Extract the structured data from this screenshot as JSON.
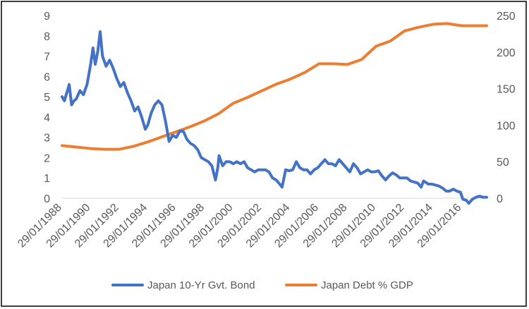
{
  "chart_data": {
    "type": "line",
    "title": "",
    "xlabel": "",
    "ylabel": "",
    "y_left": {
      "min": 0,
      "max": 9,
      "ticks": [
        "0",
        "1",
        "2",
        "3",
        "4",
        "5",
        "6",
        "7",
        "8",
        "9"
      ]
    },
    "y_right": {
      "min": 0,
      "max": 250,
      "ticks": [
        "0",
        "50",
        "100",
        "150",
        "200",
        "250"
      ]
    },
    "x_range": [
      "1988-01-29",
      "2017-10-31"
    ],
    "x_ticks": [
      "29/01/1988",
      "29/01/1990",
      "29/01/1992",
      "29/01/1994",
      "29/01/1996",
      "29/01/1998",
      "29/01/2000",
      "29/01/2002",
      "29/01/2004",
      "29/01/2006",
      "29/01/2008",
      "29/01/2010",
      "29/01/2012",
      "29/01/2014",
      "29/01/2016"
    ],
    "grid": false,
    "legend_position": "bottom",
    "series": [
      {
        "name": "Japan 10-Yr Gvt. Bond",
        "axis": "left",
        "color": "#4472C4",
        "points": [
          [
            "1988-01-29",
            5.0
          ],
          [
            "1988-03-29",
            4.8
          ],
          [
            "1988-05-29",
            5.2
          ],
          [
            "1988-07-29",
            5.6
          ],
          [
            "1988-09-29",
            4.6
          ],
          [
            "1988-11-29",
            4.8
          ],
          [
            "1989-01-29",
            4.9
          ],
          [
            "1989-04-29",
            5.3
          ],
          [
            "1989-07-29",
            5.1
          ],
          [
            "1989-10-29",
            5.6
          ],
          [
            "1990-01-29",
            6.6
          ],
          [
            "1990-03-29",
            7.4
          ],
          [
            "1990-05-29",
            6.6
          ],
          [
            "1990-07-29",
            7.2
          ],
          [
            "1990-09-29",
            8.2
          ],
          [
            "1990-11-29",
            7.0
          ],
          [
            "1991-02-28",
            6.5
          ],
          [
            "1991-05-29",
            6.8
          ],
          [
            "1991-08-29",
            6.4
          ],
          [
            "1991-11-29",
            5.9
          ],
          [
            "1992-02-29",
            5.5
          ],
          [
            "1992-05-29",
            5.7
          ],
          [
            "1992-08-29",
            5.2
          ],
          [
            "1992-11-29",
            4.8
          ],
          [
            "1993-02-28",
            4.3
          ],
          [
            "1993-05-29",
            4.5
          ],
          [
            "1993-08-29",
            4.0
          ],
          [
            "1993-11-29",
            3.4
          ],
          [
            "1994-01-29",
            3.6
          ],
          [
            "1994-04-29",
            4.2
          ],
          [
            "1994-07-29",
            4.6
          ],
          [
            "1994-10-29",
            4.8
          ],
          [
            "1995-01-29",
            4.6
          ],
          [
            "1995-04-29",
            3.8
          ],
          [
            "1995-07-29",
            2.8
          ],
          [
            "1995-10-29",
            3.1
          ],
          [
            "1996-01-29",
            3.0
          ],
          [
            "1996-04-29",
            3.3
          ],
          [
            "1996-07-29",
            3.3
          ],
          [
            "1996-10-29",
            2.9
          ],
          [
            "1997-01-29",
            2.7
          ],
          [
            "1997-04-29",
            2.6
          ],
          [
            "1997-07-29",
            2.4
          ],
          [
            "1997-10-29",
            2.0
          ],
          [
            "1998-01-29",
            1.9
          ],
          [
            "1998-04-29",
            1.8
          ],
          [
            "1998-07-29",
            1.6
          ],
          [
            "1998-10-29",
            0.9
          ],
          [
            "1998-12-29",
            1.5
          ],
          [
            "1999-01-29",
            2.1
          ],
          [
            "1999-04-29",
            1.6
          ],
          [
            "1999-07-29",
            1.8
          ],
          [
            "1999-10-29",
            1.8
          ],
          [
            "2000-01-29",
            1.7
          ],
          [
            "2000-04-29",
            1.8
          ],
          [
            "2000-07-29",
            1.7
          ],
          [
            "2000-10-29",
            1.8
          ],
          [
            "2001-01-29",
            1.5
          ],
          [
            "2001-04-29",
            1.4
          ],
          [
            "2001-07-29",
            1.3
          ],
          [
            "2001-10-29",
            1.4
          ],
          [
            "2002-01-29",
            1.4
          ],
          [
            "2002-04-29",
            1.4
          ],
          [
            "2002-07-29",
            1.3
          ],
          [
            "2002-10-29",
            1.0
          ],
          [
            "2003-01-29",
            0.9
          ],
          [
            "2003-04-29",
            0.7
          ],
          [
            "2003-06-29",
            0.55
          ],
          [
            "2003-09-29",
            1.4
          ],
          [
            "2003-12-29",
            1.35
          ],
          [
            "2004-03-29",
            1.4
          ],
          [
            "2004-06-29",
            1.8
          ],
          [
            "2004-09-29",
            1.5
          ],
          [
            "2004-12-29",
            1.4
          ],
          [
            "2005-03-29",
            1.4
          ],
          [
            "2005-06-29",
            1.2
          ],
          [
            "2005-09-29",
            1.4
          ],
          [
            "2005-12-29",
            1.5
          ],
          [
            "2006-03-29",
            1.7
          ],
          [
            "2006-06-29",
            1.9
          ],
          [
            "2006-09-29",
            1.7
          ],
          [
            "2006-12-29",
            1.7
          ],
          [
            "2007-03-29",
            1.6
          ],
          [
            "2007-06-29",
            1.9
          ],
          [
            "2007-09-29",
            1.7
          ],
          [
            "2007-12-29",
            1.5
          ],
          [
            "2008-03-29",
            1.3
          ],
          [
            "2008-06-29",
            1.7
          ],
          [
            "2008-09-29",
            1.5
          ],
          [
            "2008-12-29",
            1.2
          ],
          [
            "2009-03-29",
            1.3
          ],
          [
            "2009-06-29",
            1.4
          ],
          [
            "2009-09-29",
            1.3
          ],
          [
            "2009-12-29",
            1.3
          ],
          [
            "2010-03-29",
            1.35
          ],
          [
            "2010-06-29",
            1.1
          ],
          [
            "2010-09-29",
            0.9
          ],
          [
            "2010-12-29",
            1.1
          ],
          [
            "2011-03-29",
            1.25
          ],
          [
            "2011-06-29",
            1.15
          ],
          [
            "2011-09-29",
            1.0
          ],
          [
            "2011-12-29",
            1.0
          ],
          [
            "2012-03-29",
            1.0
          ],
          [
            "2012-06-29",
            0.85
          ],
          [
            "2012-09-29",
            0.8
          ],
          [
            "2012-12-29",
            0.75
          ],
          [
            "2013-03-29",
            0.55
          ],
          [
            "2013-05-29",
            0.85
          ],
          [
            "2013-09-29",
            0.7
          ],
          [
            "2013-12-29",
            0.7
          ],
          [
            "2014-03-29",
            0.65
          ],
          [
            "2014-06-29",
            0.6
          ],
          [
            "2014-09-29",
            0.5
          ],
          [
            "2014-12-29",
            0.35
          ],
          [
            "2015-03-29",
            0.35
          ],
          [
            "2015-06-29",
            0.45
          ],
          [
            "2015-09-29",
            0.35
          ],
          [
            "2015-12-29",
            0.3
          ],
          [
            "2016-02-29",
            -0.05
          ],
          [
            "2016-05-29",
            -0.1
          ],
          [
            "2016-07-29",
            -0.25
          ],
          [
            "2016-10-29",
            -0.05
          ],
          [
            "2017-01-29",
            0.05
          ],
          [
            "2017-04-29",
            0.1
          ],
          [
            "2017-07-29",
            0.05
          ],
          [
            "2017-10-31",
            0.05
          ]
        ]
      },
      {
        "name": "Japan Debt % GDP",
        "axis": "right",
        "color": "#ED7D31",
        "points": [
          [
            "1988-01-29",
            72
          ],
          [
            "1989-01-29",
            70
          ],
          [
            "1990-01-29",
            68
          ],
          [
            "1991-01-29",
            67
          ],
          [
            "1992-01-29",
            67
          ],
          [
            "1993-01-29",
            71
          ],
          [
            "1994-01-29",
            77
          ],
          [
            "1995-01-29",
            84
          ],
          [
            "1996-01-29",
            91
          ],
          [
            "1997-01-29",
            98
          ],
          [
            "1998-01-29",
            106
          ],
          [
            "1999-01-29",
            116
          ],
          [
            "2000-01-29",
            130
          ],
          [
            "2001-01-29",
            138
          ],
          [
            "2002-01-29",
            147
          ],
          [
            "2003-01-29",
            156
          ],
          [
            "2004-01-29",
            163
          ],
          [
            "2005-01-29",
            172
          ],
          [
            "2006-01-29",
            184
          ],
          [
            "2007-01-29",
            184
          ],
          [
            "2008-01-29",
            183
          ],
          [
            "2009-01-29",
            190
          ],
          [
            "2010-01-29",
            208
          ],
          [
            "2011-01-29",
            215
          ],
          [
            "2012-01-29",
            229
          ],
          [
            "2013-01-29",
            234
          ],
          [
            "2014-01-29",
            238
          ],
          [
            "2015-01-29",
            239
          ],
          [
            "2016-01-29",
            236
          ],
          [
            "2017-01-29",
            236
          ],
          [
            "2017-10-31",
            236
          ]
        ]
      }
    ]
  }
}
